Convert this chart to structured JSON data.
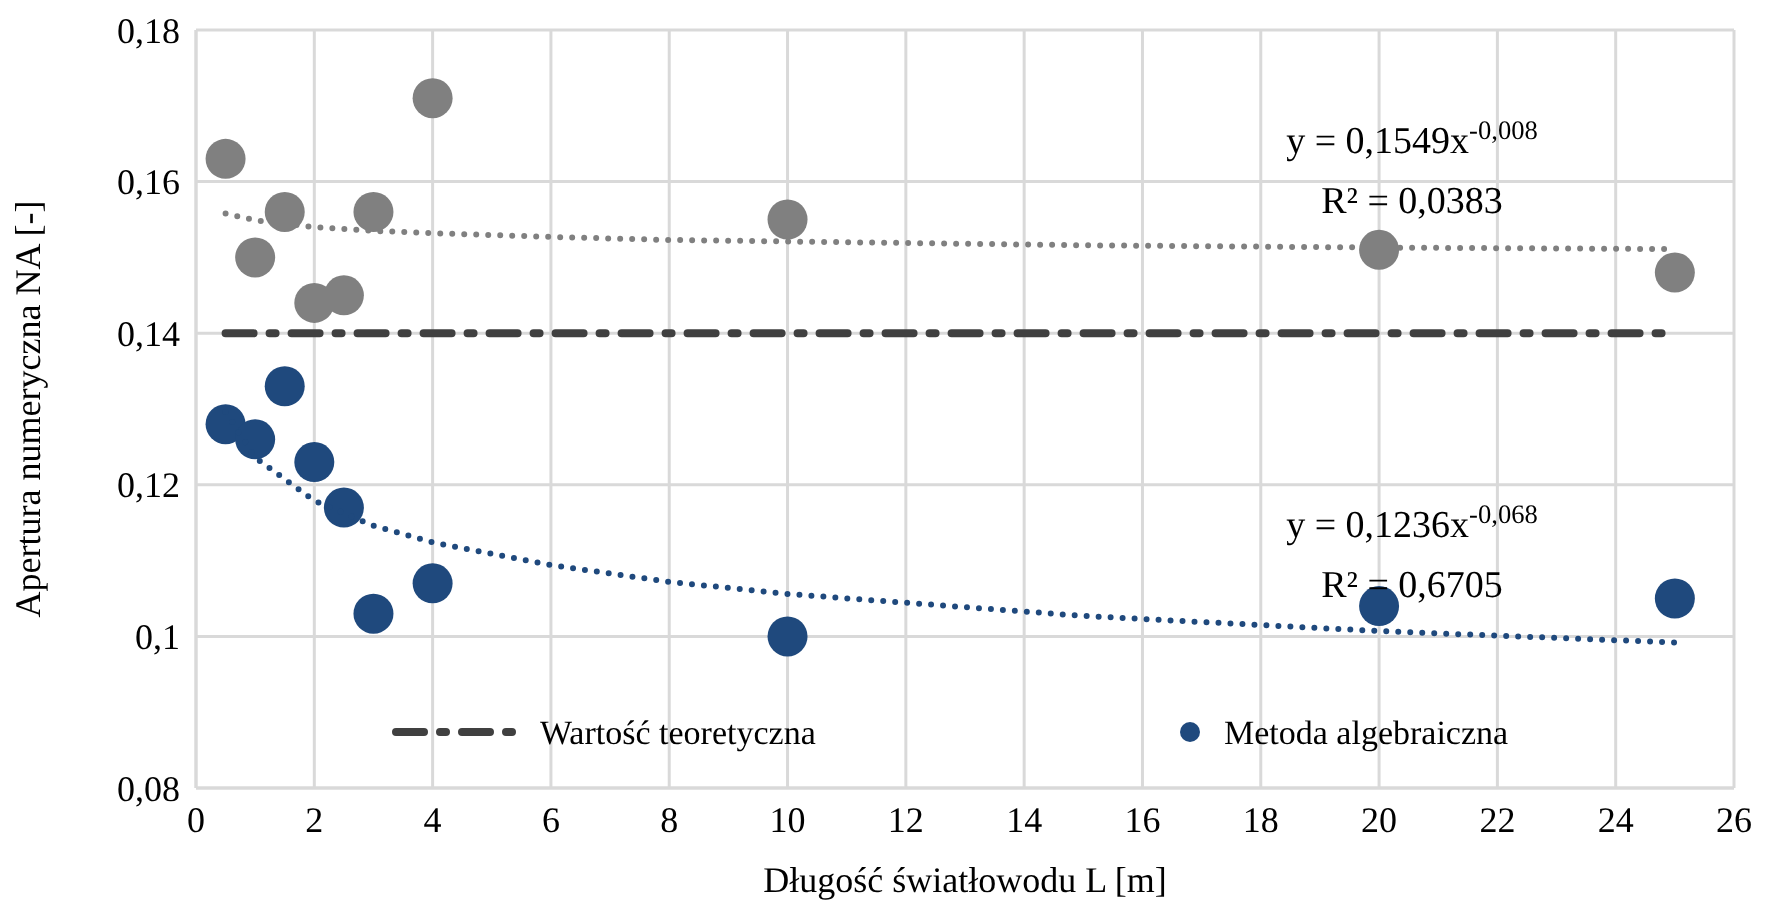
{
  "chart_data": {
    "type": "scatter",
    "xlabel": "Długość światłowodu L [m]",
    "ylabel": "Apertura numeryczna NA [-]",
    "xlim": [
      0,
      26
    ],
    "xticks": [
      0,
      2,
      4,
      6,
      8,
      10,
      12,
      14,
      16,
      18,
      20,
      22,
      24,
      26
    ],
    "ylim": [
      0.08,
      0.18
    ],
    "yticks": [
      {
        "value": 0.08,
        "label": "0,08"
      },
      {
        "value": 0.1,
        "label": "0,1"
      },
      {
        "value": 0.12,
        "label": "0,12"
      },
      {
        "value": 0.14,
        "label": "0,14"
      },
      {
        "value": 0.16,
        "label": "0,16"
      },
      {
        "value": 0.18,
        "label": "0,18"
      }
    ],
    "grid": true,
    "legend": "bottom",
    "marker": "circle",
    "series": [
      {
        "type": "line",
        "name": "Wartość teoretyczna",
        "color": "#404040",
        "line_style": "dashed",
        "marker": "none",
        "x": [
          0.5,
          25
        ],
        "values": [
          0.14,
          0.14
        ]
      },
      {
        "color": "#808080",
        "x": [
          0.5,
          1,
          1.5,
          2,
          2.5,
          3,
          4,
          10,
          20,
          25
        ],
        "values": [
          0.163,
          0.15,
          0.156,
          0.144,
          0.145,
          0.156,
          0.171,
          0.155,
          0.151,
          0.148
        ]
      },
      {
        "name": "Metoda algebraiczna",
        "color": "#1f497d",
        "x": [
          0.5,
          1,
          1.5,
          2,
          2.5,
          3,
          4,
          10,
          20,
          25
        ],
        "values": [
          0.128,
          0.126,
          0.133,
          0.123,
          0.117,
          0.103,
          0.107,
          0.1,
          0.104,
          0.105
        ]
      },
      {
        "type": "line",
        "color": "#808080",
        "line_style": "dotted",
        "marker": "none",
        "x": [
          0.5,
          1,
          2,
          3,
          4,
          6,
          8,
          10,
          15,
          20,
          25
        ],
        "values": [
          0.1558,
          0.1549,
          0.154,
          0.1535,
          0.1532,
          0.1527,
          0.1523,
          0.1521,
          0.1516,
          0.1513,
          0.1511
        ]
      },
      {
        "type": "line",
        "color": "#1f497d",
        "line_style": "dotted",
        "marker": "none",
        "x": [
          0.5,
          1,
          2,
          3,
          4,
          6,
          8,
          10,
          15,
          20,
          25
        ],
        "values": [
          0.1296,
          0.1236,
          0.1179,
          0.1146,
          0.1124,
          0.1094,
          0.1072,
          0.1056,
          0.1027,
          0.1007,
          0.0992
        ]
      }
    ],
    "annotations": [
      "y = 0,1549x$^{-0,008}$",
      "R² = 0,0383",
      "y = 0,1236x$^{-0,068}$",
      "R² = 0,6705"
    ]
  }
}
